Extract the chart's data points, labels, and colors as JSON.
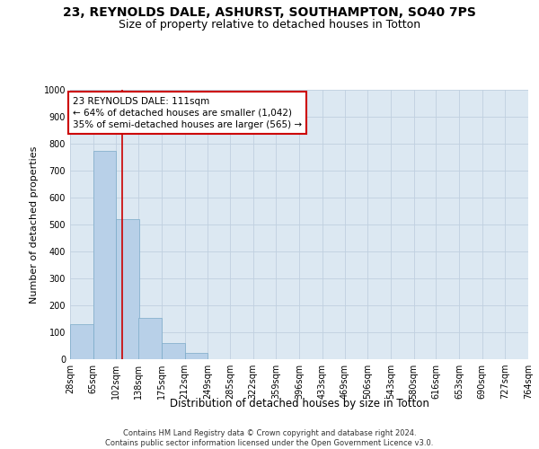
{
  "title": "23, REYNOLDS DALE, ASHURST, SOUTHAMPTON, SO40 7PS",
  "subtitle": "Size of property relative to detached houses in Totton",
  "xlabel": "Distribution of detached houses by size in Totton",
  "ylabel": "Number of detached properties",
  "bin_edges": [
    28,
    65,
    102,
    138,
    175,
    212,
    249,
    285,
    322,
    359,
    396,
    433,
    469,
    506,
    543,
    580,
    616,
    653,
    690,
    727,
    764
  ],
  "bar_heights": [
    130,
    775,
    520,
    155,
    60,
    22,
    0,
    0,
    0,
    0,
    0,
    0,
    0,
    0,
    0,
    0,
    0,
    0,
    0,
    0
  ],
  "bar_color": "#b8d0e8",
  "bar_edgecolor": "#7aaac8",
  "vline_x": 111,
  "vline_color": "#cc0000",
  "annotation_text": "23 REYNOLDS DALE: 111sqm\n← 64% of detached houses are smaller (1,042)\n35% of semi-detached houses are larger (565) →",
  "annotation_box_color": "#cc0000",
  "ylim": [
    0,
    1000
  ],
  "yticks": [
    0,
    100,
    200,
    300,
    400,
    500,
    600,
    700,
    800,
    900,
    1000
  ],
  "grid_color": "#c0d0e0",
  "background_color": "#dce8f2",
  "footnote": "Contains HM Land Registry data © Crown copyright and database right 2024.\nContains public sector information licensed under the Open Government Licence v3.0.",
  "title_fontsize": 10,
  "subtitle_fontsize": 9,
  "xlabel_fontsize": 8.5,
  "ylabel_fontsize": 8,
  "tick_fontsize": 7,
  "annotation_fontsize": 7.5,
  "footnote_fontsize": 6
}
